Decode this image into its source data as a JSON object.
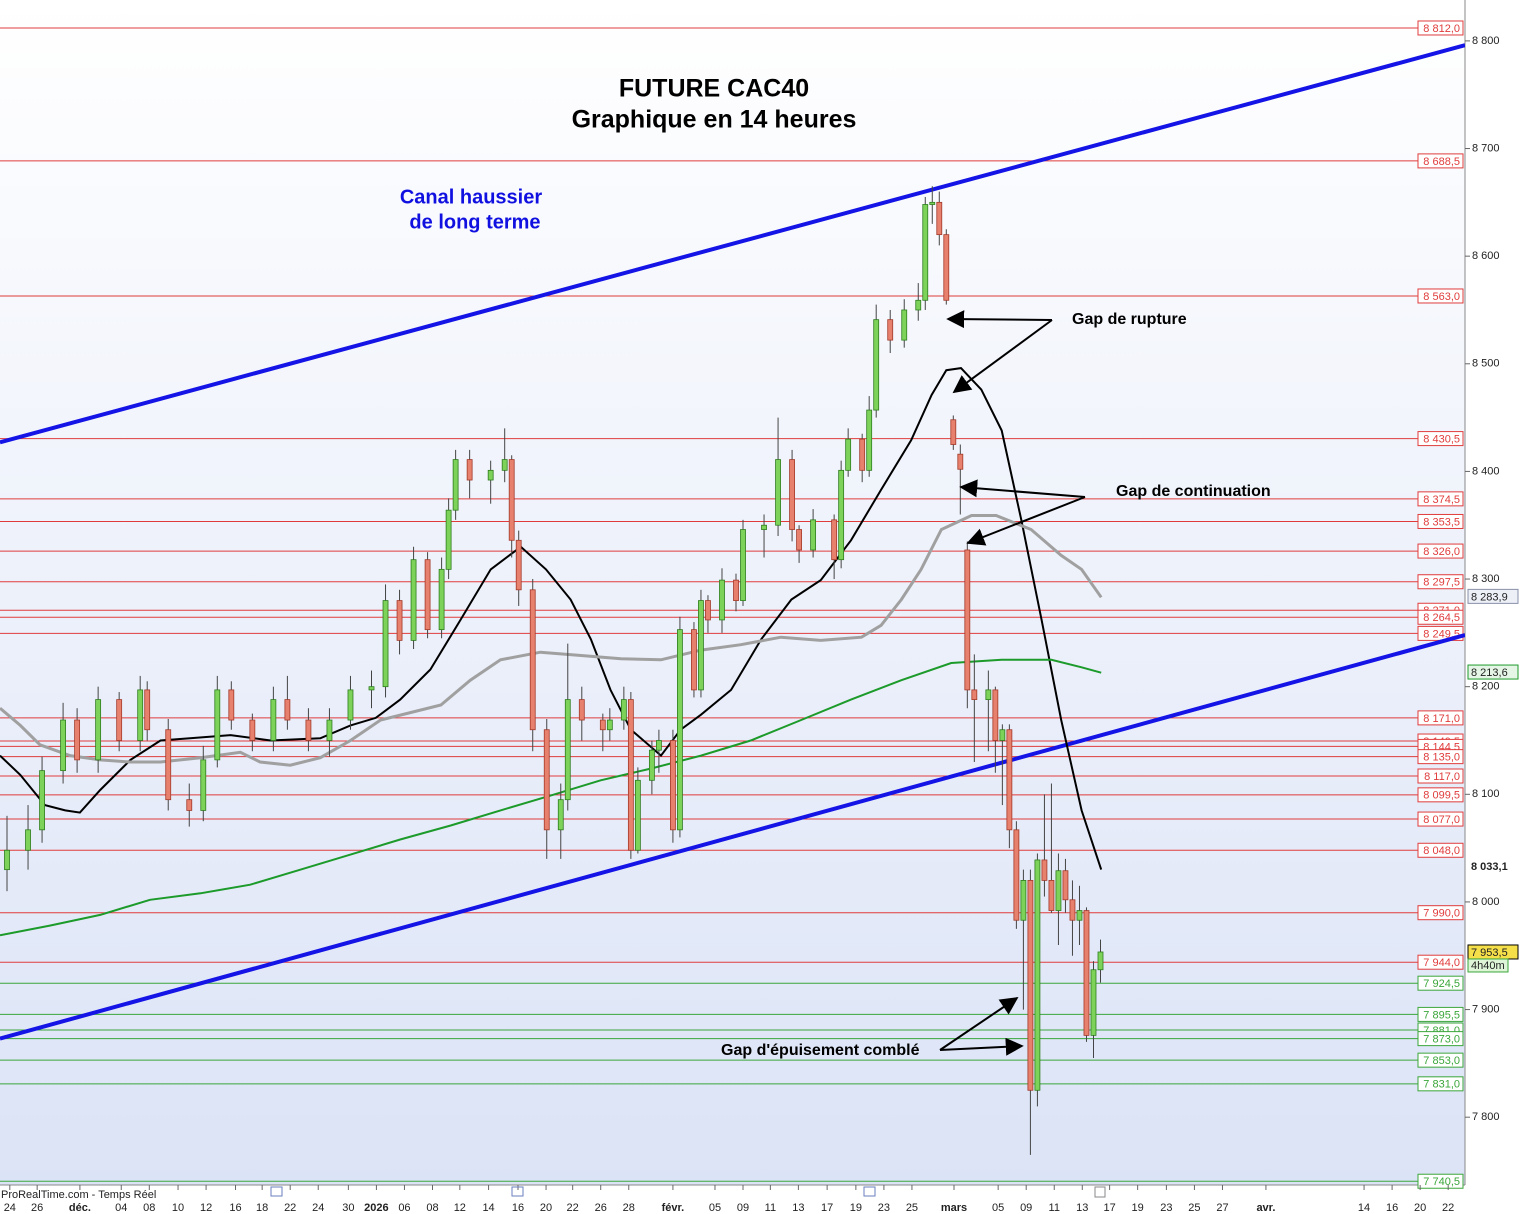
{
  "chart_data": {
    "type": "candlestick",
    "title": "FUTURE CAC40",
    "subtitle": "Graphique en 14 heures",
    "annotations": [
      "Canal haussier",
      "de long terme",
      "Gap de rupture",
      "Gap de continuation",
      "Gap d'épuisement comblé"
    ],
    "source": "ProRealTime.com - Temps Réel",
    "timer": "4h40m",
    "xlim": [
      0,
      209
    ],
    "ylim": [
      7737,
      8838
    ],
    "yticks": [
      {
        "value": 7800,
        "label": "7 800"
      },
      {
        "value": 7900,
        "label": "7 900"
      },
      {
        "value": 8000,
        "label": "8 000"
      },
      {
        "value": 8100,
        "label": "8 100"
      },
      {
        "value": 8200,
        "label": "8 200"
      },
      {
        "value": 8300,
        "label": "8 300"
      },
      {
        "value": 8400,
        "label": "8 400"
      },
      {
        "value": 8500,
        "label": "8 500"
      },
      {
        "value": 8600,
        "label": "8 600"
      },
      {
        "value": 8700,
        "label": "8 700"
      },
      {
        "value": 8800,
        "label": "8 800"
      }
    ],
    "xticks": [
      {
        "value": 1.4,
        "label": "24"
      },
      {
        "value": 5.3,
        "label": "26"
      },
      {
        "value": 11.4,
        "label": "déc."
      },
      {
        "value": 17.3,
        "label": "04"
      },
      {
        "value": 21.3,
        "label": "08"
      },
      {
        "value": 25.4,
        "label": "10"
      },
      {
        "value": 29.4,
        "label": "12"
      },
      {
        "value": 33.6,
        "label": "16"
      },
      {
        "value": 37.4,
        "label": "18"
      },
      {
        "value": 41.4,
        "label": "22"
      },
      {
        "value": 45.4,
        "label": "24"
      },
      {
        "value": 49.7,
        "label": "30"
      },
      {
        "value": 53.7,
        "label": "2026"
      },
      {
        "value": 57.7,
        "label": "06"
      },
      {
        "value": 61.7,
        "label": "08"
      },
      {
        "value": 65.6,
        "label": "12"
      },
      {
        "value": 69.7,
        "label": "14"
      },
      {
        "value": 73.9,
        "label": "16"
      },
      {
        "value": 77.9,
        "label": "20"
      },
      {
        "value": 81.7,
        "label": "22"
      },
      {
        "value": 85.7,
        "label": "26"
      },
      {
        "value": 89.7,
        "label": "28"
      },
      {
        "value": 96,
        "label": "févr."
      },
      {
        "value": 102,
        "label": "05"
      },
      {
        "value": 106,
        "label": "09"
      },
      {
        "value": 109.9,
        "label": "11"
      },
      {
        "value": 113.9,
        "label": "13"
      },
      {
        "value": 118,
        "label": "17"
      },
      {
        "value": 122.1,
        "label": "19"
      },
      {
        "value": 126.1,
        "label": "23"
      },
      {
        "value": 130.1,
        "label": "25"
      },
      {
        "value": 136.1,
        "label": "mars"
      },
      {
        "value": 142.4,
        "label": "05"
      },
      {
        "value": 146.4,
        "label": "09"
      },
      {
        "value": 150.4,
        "label": "11"
      },
      {
        "value": 154.4,
        "label": "13"
      },
      {
        "value": 158.3,
        "label": "17"
      },
      {
        "value": 162.3,
        "label": "19"
      },
      {
        "value": 166.4,
        "label": "23"
      },
      {
        "value": 170.4,
        "label": "25"
      },
      {
        "value": 174.4,
        "label": "27"
      },
      {
        "value": 180.6,
        "label": "avr."
      },
      {
        "value": 194.6,
        "label": "14"
      },
      {
        "value": 198.6,
        "label": "16"
      },
      {
        "value": 202.6,
        "label": "20"
      },
      {
        "value": 206.6,
        "label": "22"
      }
    ],
    "up_color": "#7dd35a",
    "down_color": "#e8806e",
    "candles": {
      "x": [
        1,
        4,
        6,
        9,
        11,
        14,
        17,
        20,
        21,
        24,
        27,
        29,
        31,
        33,
        36,
        39,
        41,
        44,
        47,
        50,
        53,
        55,
        57,
        59,
        61,
        63,
        64,
        65,
        67,
        70,
        72,
        73,
        74,
        76,
        78,
        80,
        81,
        83,
        86,
        87,
        89,
        90,
        91,
        93,
        94,
        96,
        97,
        99,
        100,
        101,
        103,
        105,
        106,
        109,
        111,
        113,
        114,
        116,
        119,
        120,
        121,
        123,
        124,
        125,
        127,
        129,
        131,
        132,
        133,
        134,
        135,
        136,
        137,
        138,
        139,
        141,
        142,
        143,
        144,
        145,
        146,
        147,
        148,
        149,
        150,
        151,
        152,
        153,
        154,
        155,
        156,
        157
      ],
      "open": [
        8030,
        8048,
        8067,
        8122,
        8169,
        8132,
        8188,
        8150,
        8197,
        8160,
        8095,
        8085,
        8132,
        8197,
        8169,
        8150,
        8188,
        8169,
        8150,
        8169,
        8197,
        8200,
        8280,
        8243,
        8318,
        8253,
        8309,
        8364,
        8411,
        8392,
        8401,
        8411,
        8336,
        8290,
        8160,
        8067,
        8095,
        8188,
        8169,
        8160,
        8169,
        8188,
        8048,
        8113,
        8141,
        8150,
        8067,
        8253,
        8197,
        8280,
        8262,
        8299,
        8280,
        8346,
        8350,
        8411,
        8346,
        8327,
        8355,
        8318,
        8401,
        8430,
        8401,
        8457,
        8541,
        8522,
        8550,
        8559,
        8648,
        8650,
        8620,
        8448,
        8416,
        8327,
        8197,
        8188,
        8197,
        8150,
        8160,
        8067,
        7983,
        8020,
        7825,
        8039,
        8020,
        7992,
        8029,
        8002,
        7983,
        7992,
        7876,
        7937
      ],
      "high": [
        8080,
        8090,
        8135,
        8185,
        8180,
        8200,
        8195,
        8210,
        8205,
        8170,
        8110,
        8145,
        8210,
        8205,
        8175,
        8200,
        8210,
        8180,
        8180,
        8210,
        8215,
        8295,
        8290,
        8330,
        8325,
        8320,
        8375,
        8420,
        8420,
        8410,
        8440,
        8415,
        8345,
        8300,
        8170,
        8110,
        8240,
        8200,
        8175,
        8180,
        8200,
        8195,
        8125,
        8150,
        8160,
        8160,
        8265,
        8260,
        8290,
        8285,
        8310,
        8305,
        8355,
        8360,
        8450,
        8420,
        8350,
        8365,
        8360,
        8410,
        8440,
        8435,
        8470,
        8555,
        8550,
        8560,
        8575,
        8655,
        8665,
        8660,
        8625,
        8452,
        8425,
        8335,
        8230,
        8215,
        8200,
        8165,
        8165,
        8075,
        8030,
        8030,
        8045,
        8100,
        8110,
        8045,
        8040,
        8020,
        8015,
        7995,
        7945,
        7965
      ],
      "low": [
        8010,
        8030,
        8055,
        8110,
        8120,
        8120,
        8140,
        8140,
        8150,
        8085,
        8070,
        8075,
        8125,
        8160,
        8140,
        8140,
        8160,
        8140,
        8135,
        8160,
        8180,
        8190,
        8230,
        8235,
        8245,
        8245,
        8300,
        8355,
        8375,
        8370,
        8390,
        8320,
        8275,
        8140,
        8040,
        8040,
        8085,
        8150,
        8140,
        8150,
        8160,
        8040,
        8045,
        8100,
        8120,
        8055,
        8060,
        8190,
        8190,
        8250,
        8250,
        8270,
        8275,
        8320,
        8340,
        8335,
        8315,
        8320,
        8300,
        8310,
        8395,
        8390,
        8395,
        8450,
        8510,
        8515,
        8540,
        8550,
        8630,
        8610,
        8555,
        8420,
        8360,
        8180,
        8130,
        8140,
        8120,
        8090,
        8050,
        7975,
        7900,
        7765,
        7810,
        8005,
        7990,
        7960,
        7990,
        7950,
        7960,
        7870,
        7855,
        7925
      ],
      "close": [
        8048,
        8067,
        8122,
        8169,
        8132,
        8188,
        8150,
        8197,
        8160,
        8095,
        8085,
        8132,
        8197,
        8169,
        8150,
        8188,
        8169,
        8150,
        8169,
        8197,
        8200,
        8280,
        8243,
        8318,
        8253,
        8309,
        8364,
        8411,
        8392,
        8401,
        8411,
        8336,
        8290,
        8160,
        8067,
        8095,
        8188,
        8169,
        8160,
        8169,
        8188,
        8048,
        8113,
        8141,
        8150,
        8067,
        8253,
        8197,
        8280,
        8262,
        8299,
        8280,
        8346,
        8350,
        8411,
        8346,
        8327,
        8355,
        8318,
        8401,
        8430,
        8401,
        8457,
        8541,
        8522,
        8550,
        8559,
        8648,
        8650,
        8620,
        8559,
        8425,
        8402,
        8197,
        8188,
        8197,
        8150,
        8160,
        8067,
        7983,
        8020,
        7825,
        8039,
        8020,
        7992,
        8029,
        8002,
        7983,
        7992,
        7876,
        7937,
        7953.5
      ]
    },
    "moving_averages": [
      {
        "color": "#000000",
        "width": 2,
        "x": [
          0,
          2.9,
          6.4,
          9.3,
          11.4,
          14.3,
          18.6,
          22.9,
          27.1,
          32.9,
          38.6,
          45.7,
          50,
          53.6,
          57.1,
          61.4,
          65.7,
          70,
          74.3,
          77.9,
          81.4,
          84.3,
          87.1,
          90,
          94.3,
          97.1,
          100,
          104.3,
          108.6,
          112.9,
          117.1,
          121.4,
          125.7,
          130,
          132.9,
          135,
          137.1,
          140,
          142.9,
          145.7,
          148.6,
          151.4,
          154.3,
          157.1
        ],
        "values": [
          8136,
          8118,
          8090,
          8085,
          8083,
          8104,
          8132,
          8150,
          8152,
          8155,
          8150,
          8152,
          8164,
          8171,
          8188,
          8216,
          8262,
          8309,
          8330,
          8309,
          8281,
          8244,
          8197,
          8160,
          8136,
          8160,
          8174,
          8197,
          8244,
          8281,
          8299,
          8336,
          8383,
          8429,
          8471,
          8494,
          8496,
          8476,
          8438,
          8355,
          8262,
          8169,
          8085,
          8030
        ]
      },
      {
        "color": "#a0a0a0",
        "width": 3,
        "x": [
          0,
          2.9,
          5.7,
          10,
          14.3,
          18.6,
          22.9,
          28.6,
          34.3,
          37.1,
          41.4,
          45.7,
          50,
          54.3,
          58.6,
          62.9,
          67.1,
          71.4,
          77.1,
          82.9,
          88.6,
          94.3,
          100,
          105.7,
          111.4,
          117.1,
          122.9,
          125.7,
          128.6,
          131.4,
          134.3,
          138.6,
          142.1,
          147.1,
          151.4,
          154.3,
          157.1
        ],
        "values": [
          8180,
          8164,
          8146,
          8136,
          8132,
          8130,
          8130,
          8134,
          8139,
          8130,
          8127,
          8134,
          8150,
          8169,
          8176,
          8183,
          8206,
          8225,
          8232,
          8229,
          8226,
          8225,
          8234,
          8239,
          8246,
          8243,
          8246,
          8257,
          8281,
          8309,
          8346,
          8359,
          8359,
          8346,
          8322,
          8309,
          8283
        ]
      },
      {
        "color": "#1c9a2a",
        "width": 2,
        "x": [
          0,
          7.1,
          14.3,
          21.4,
          28.6,
          35.7,
          42.9,
          50,
          57.1,
          64.3,
          71.4,
          78.6,
          85.7,
          92.9,
          100,
          107.1,
          114.3,
          121.4,
          128.6,
          135.7,
          142.9,
          150,
          154.3,
          157.1
        ],
        "values": [
          7969,
          7978,
          7988,
          8002,
          8008,
          8016,
          8030,
          8044,
          8058,
          8071,
          8085,
          8099,
          8113,
          8124,
          8136,
          8150,
          8169,
          8188,
          8206,
          8222,
          8225,
          8225,
          8218,
          8213
        ]
      }
    ],
    "channel": [
      {
        "color": "#1414e6",
        "x": [
          0,
          209
        ],
        "values": [
          8427,
          8796
        ]
      },
      {
        "color": "#1414e6",
        "x": [
          0,
          209
        ],
        "values": [
          7873,
          8248
        ]
      }
    ],
    "levels": [
      {
        "value": 8812,
        "label": "8 812,0",
        "color": "#e03c3c"
      },
      {
        "value": 8688.5,
        "label": "8 688,5",
        "color": "#e03c3c"
      },
      {
        "value": 8563,
        "label": "8 563,0",
        "color": "#e03c3c"
      },
      {
        "value": 8430.5,
        "label": "8 430,5",
        "color": "#e03c3c"
      },
      {
        "value": 8374.5,
        "label": "8 374,5",
        "color": "#e03c3c"
      },
      {
        "value": 8353.5,
        "label": "8 353,5",
        "color": "#e03c3c"
      },
      {
        "value": 8326,
        "label": "8 326,0",
        "color": "#e03c3c"
      },
      {
        "value": 8297.5,
        "label": "8 297,5",
        "color": "#e03c3c"
      },
      {
        "value": 8271,
        "label": "8 271,0",
        "color": "#e03c3c"
      },
      {
        "value": 8264.5,
        "label": "8 264,5",
        "color": "#e03c3c"
      },
      {
        "value": 8249.5,
        "label": "8 249,5",
        "color": "#e03c3c"
      },
      {
        "value": 8171,
        "label": "8 171,0",
        "color": "#e03c3c"
      },
      {
        "value": 8149.5,
        "label": "8 149,5",
        "color": "#e03c3c"
      },
      {
        "value": 8144.5,
        "label": "8 144,5",
        "color": "#e03c3c"
      },
      {
        "value": 8135,
        "label": "8 135,0",
        "color": "#e03c3c"
      },
      {
        "value": 8117,
        "label": "8 117,0",
        "color": "#e03c3c"
      },
      {
        "value": 8099.5,
        "label": "8 099,5",
        "color": "#e03c3c"
      },
      {
        "value": 8077,
        "label": "8 077,0",
        "color": "#e03c3c"
      },
      {
        "value": 8048,
        "label": "8 048,0",
        "color": "#e03c3c"
      },
      {
        "value": 7990,
        "label": "7 990,0",
        "color": "#e03c3c"
      },
      {
        "value": 7944,
        "label": "7 944,0",
        "color": "#e03c3c"
      },
      {
        "value": 7924.5,
        "label": "7 924,5",
        "color": "#3aa63a"
      },
      {
        "value": 7895.5,
        "label": "7 895,5",
        "color": "#3aa63a"
      },
      {
        "value": 7881,
        "label": "7 881,0",
        "color": "#3aa63a"
      },
      {
        "value": 7873,
        "label": "7 873,0",
        "color": "#3aa63a"
      },
      {
        "value": 7853,
        "label": "7 853,0",
        "color": "#3aa63a"
      },
      {
        "value": 7831,
        "label": "7 831,0",
        "color": "#3aa63a"
      },
      {
        "value": 7740.5,
        "label": "7 740,5",
        "color": "#3aa63a"
      }
    ],
    "last_values": [
      {
        "value": 8283.9,
        "label": "8 283,9",
        "color": "#8890a8",
        "fill": "#eef0f8"
      },
      {
        "value": 8213.6,
        "label": "8 213,6",
        "color": "#1c9a2a",
        "fill": "#e6f6e6"
      },
      {
        "value": 8033.1,
        "label": "8 033,1",
        "color": "#000000",
        "fill": "#ffffff"
      },
      {
        "value": 7953.5,
        "label": "7 953,5",
        "color": "#000000",
        "fill": "#f5e04a"
      }
    ]
  }
}
